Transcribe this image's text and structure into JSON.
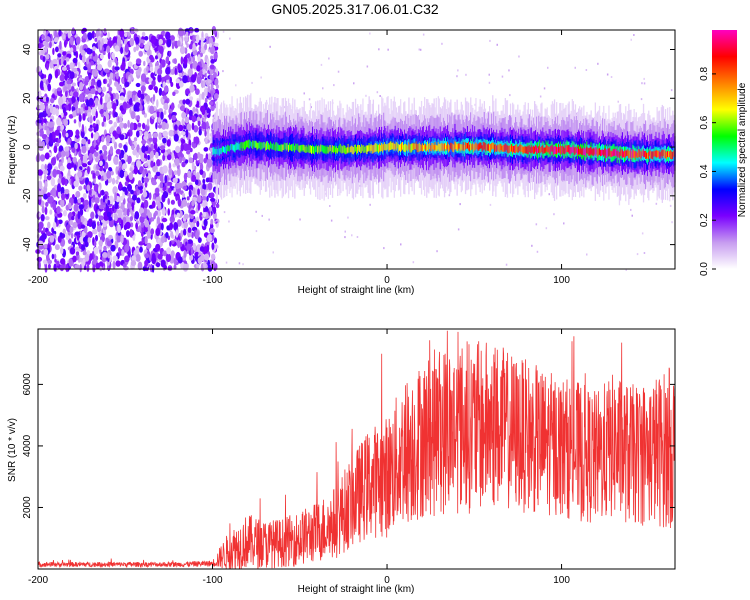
{
  "title": "GN05.2025.317.06.01.C32",
  "chart_data": [
    {
      "type": "heatmap",
      "xlabel": "Height of straight line (km)",
      "ylabel": "Frequency (Hz)",
      "xlim": [
        -200,
        165
      ],
      "ylim": [
        -50,
        48
      ],
      "xticks": [
        -200,
        -100,
        0,
        100
      ],
      "yticks": [
        40,
        20,
        0,
        -20,
        -40
      ],
      "noise_region_x": [
        -200,
        -100
      ],
      "signal_band": {
        "x": [
          -100,
          -80,
          -60,
          -40,
          -20,
          0,
          20,
          40,
          60,
          80,
          100,
          120,
          140,
          165
        ],
        "center_hz": [
          -2,
          1,
          0,
          -1,
          -1,
          0,
          0,
          0,
          0,
          -1,
          -1,
          -2,
          -3,
          -3
        ],
        "peak_amplitude": [
          0.45,
          0.55,
          0.6,
          0.6,
          0.65,
          0.7,
          0.75,
          0.8,
          0.85,
          0.9,
          0.95,
          0.95,
          0.9,
          0.85
        ]
      },
      "colorbar": {
        "label": "Normalized spectral amplitude",
        "ticks": [
          0.0,
          0.2,
          0.4,
          0.6,
          0.8
        ],
        "range": [
          0,
          0.98
        ],
        "colors": [
          "#ffffff",
          "#c79cf0",
          "#7a00ff",
          "#0000ff",
          "#00ffff",
          "#00ff00",
          "#ffff00",
          "#ff8000",
          "#ff0000",
          "#ff00c0"
        ]
      }
    },
    {
      "type": "line",
      "xlabel": "Height of straight line (km)",
      "ylabel": "SNR (10 * v/v)",
      "xlim": [
        -200,
        165
      ],
      "ylim": [
        0,
        7800
      ],
      "xticks": [
        -200,
        -100,
        0,
        100
      ],
      "yticks": [
        2000,
        4000,
        6000
      ],
      "color": "#f03232",
      "series": [
        {
          "x": [
            -200,
            -180,
            -160,
            -140,
            -120,
            -100,
            -95,
            -90,
            -80,
            -70,
            -60,
            -50,
            -40,
            -30,
            -20,
            -10,
            0,
            10,
            20,
            30,
            40,
            50,
            60,
            70,
            80,
            90,
            100,
            110,
            120,
            130,
            140,
            150,
            160,
            165
          ],
          "y": [
            150,
            150,
            150,
            150,
            150,
            180,
            400,
            600,
            900,
            800,
            850,
            1000,
            1200,
            1500,
            2200,
            2800,
            3000,
            3800,
            4200,
            4500,
            4600,
            4600,
            4700,
            4500,
            4300,
            4100,
            4000,
            3800,
            3600,
            4000,
            3700,
            3800,
            3900,
            4000
          ],
          "spread": [
            80,
            80,
            80,
            80,
            80,
            100,
            400,
            700,
            900,
            800,
            800,
            900,
            1000,
            1200,
            1500,
            1800,
            2000,
            2400,
            2600,
            2800,
            2800,
            2800,
            2800,
            2600,
            2500,
            2400,
            2300,
            2300,
            2200,
            2400,
            2300,
            2400,
            2600,
            2700
          ]
        }
      ]
    }
  ]
}
